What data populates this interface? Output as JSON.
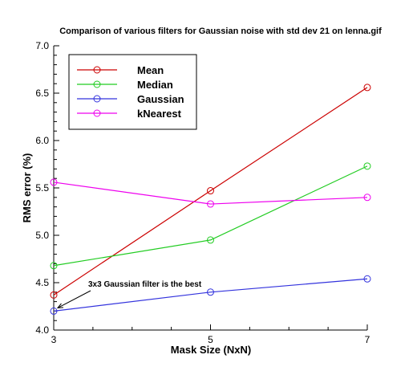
{
  "chart_data": {
    "type": "line",
    "title": "Comparison of various filters for Gaussian noise with std dev 21 on lenna.gif",
    "xlabel": "Mask Size (NxN)",
    "ylabel": "RMS error (%)",
    "x": [
      3,
      5,
      7
    ],
    "x_ticks": [
      "3",
      "5",
      "7"
    ],
    "xlim": [
      3,
      7
    ],
    "y_ticks": [
      "4.0",
      "4.5",
      "5.0",
      "5.5",
      "6.0",
      "6.5",
      "7.0"
    ],
    "ylim": [
      4.0,
      7.0
    ],
    "grid": false,
    "legend_position": "top-left",
    "series": [
      {
        "name": "Mean",
        "color": "#cc0000",
        "values": [
          4.37,
          5.47,
          6.56
        ]
      },
      {
        "name": "Median",
        "color": "#22cc22",
        "values": [
          4.68,
          4.95,
          5.73
        ]
      },
      {
        "name": "Gaussian",
        "color": "#3333dd",
        "values": [
          4.2,
          4.4,
          4.54
        ]
      },
      {
        "name": "kNearest",
        "color": "#ee00ee",
        "values": [
          5.56,
          5.33,
          5.4
        ]
      }
    ],
    "annotations": [
      {
        "text": "3x3 Gaussian filter is the best",
        "x": 3,
        "y": 4.2
      }
    ]
  }
}
